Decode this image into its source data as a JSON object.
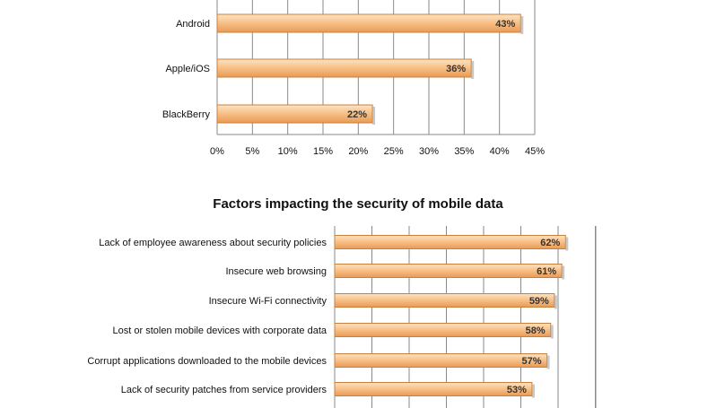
{
  "chart_data": [
    {
      "type": "bar",
      "orientation": "horizontal",
      "title": "",
      "categories": [
        "Android",
        "Apple/iOS",
        "BlackBerry"
      ],
      "values": [
        43,
        36,
        22
      ],
      "value_labels": [
        "43%",
        "36%",
        "22%"
      ],
      "xlim": [
        0,
        45
      ],
      "ticks": [
        "0%",
        "5%",
        "10%",
        "15%",
        "20%",
        "25%",
        "30%",
        "35%",
        "40%",
        "45%"
      ],
      "grid": true,
      "bar_color": "#f5b16e"
    },
    {
      "type": "bar",
      "orientation": "horizontal",
      "title": "Factors impacting the security of mobile data",
      "categories": [
        "Lack of employee awareness about security policies",
        "Insecure web browsing",
        "Insecure Wi-Fi connectivity",
        "Lost or stolen mobile devices with corporate data",
        "Corrupt applications downloaded to the mobile devices",
        "Lack of security patches from service providers"
      ],
      "values": [
        62,
        61,
        59,
        58,
        57,
        53
      ],
      "value_labels": [
        "62%",
        "61%",
        "59%",
        "58%",
        "57%",
        "53%"
      ],
      "grid": true,
      "bar_color": "#f5b16e"
    }
  ]
}
